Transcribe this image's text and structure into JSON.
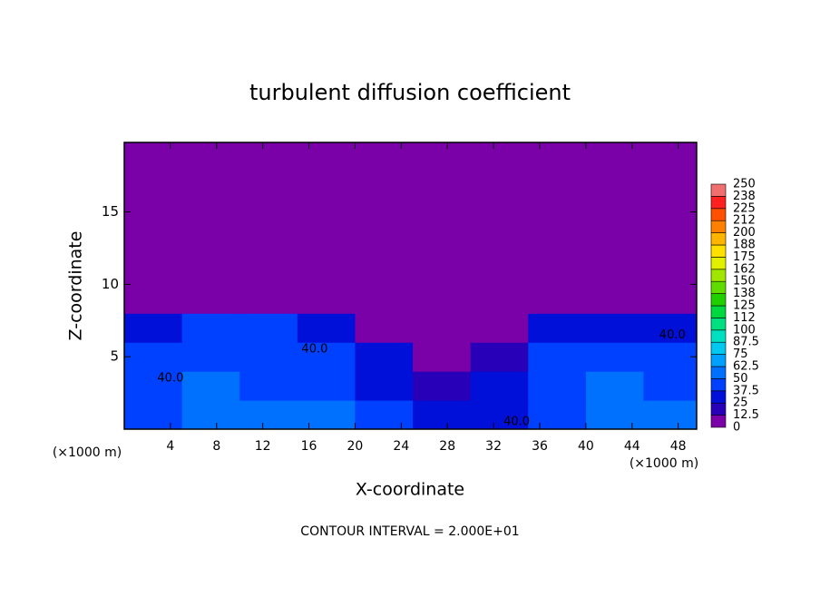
{
  "chart_data": {
    "type": "heatmap",
    "title": "turbulent diffusion coefficient",
    "x_label": "X-coordinate",
    "y_label": "Z-coordinate",
    "x_unit_left": "(×1000 m)",
    "x_unit_right": "(×1000 m)",
    "footer": "CONTOUR INTERVAL = 2.000E+01",
    "xlim": [
      0,
      49.6
    ],
    "ylim": [
      0,
      19.8
    ],
    "xticks": [
      4,
      8,
      12,
      16,
      20,
      24,
      28,
      32,
      36,
      40,
      44,
      48
    ],
    "yticks": [
      5,
      10,
      15
    ],
    "x_edges": [
      0,
      5,
      10,
      15,
      20,
      25,
      30,
      35,
      40,
      45,
      49.6
    ],
    "y_edges": [
      0,
      2,
      4,
      6,
      8,
      19.8
    ],
    "values": [
      [
        45,
        55,
        50,
        50,
        40,
        30,
        35,
        45,
        50,
        55
      ],
      [
        40,
        50,
        45,
        45,
        35,
        20,
        30,
        45,
        50,
        45
      ],
      [
        40,
        45,
        45,
        40,
        30,
        10,
        15,
        40,
        45,
        40
      ],
      [
        35,
        40,
        40,
        30,
        5,
        0,
        0,
        25,
        30,
        30
      ],
      [
        0,
        0,
        0,
        0,
        0,
        0,
        0,
        0,
        0,
        0
      ]
    ],
    "levels": [
      0,
      12.5,
      25,
      37.5,
      50,
      62.5,
      75,
      87.5,
      100,
      {
        "value": 112.5,
        "label": "112"
      },
      125,
      {
        "value": 137.5,
        "label": "138"
      },
      150,
      {
        "value": 162.5,
        "label": "162"
      },
      175,
      {
        "value": 187.5,
        "label": "188"
      },
      200,
      {
        "value": 212.5,
        "label": "212"
      },
      225,
      {
        "value": 237.5,
        "label": "238"
      },
      250
    ],
    "colors": [
      "#7a00a8",
      "#2800b8",
      "#0010d8",
      "#0040ff",
      "#0070ff",
      "#00a0ff",
      "#00c8f0",
      "#00e0c0",
      "#00e080",
      "#00d840",
      "#20d000",
      "#60dc00",
      "#a0e600",
      "#e0f000",
      "#ffe000",
      "#ffb400",
      "#ff8000",
      "#ff5000",
      "#ff2020",
      "#f07070"
    ],
    "contour_labels": [
      {
        "text": "40.0",
        "x": 34,
        "y": 0.5
      },
      {
        "text": "40.0",
        "x": 4,
        "y": 3.5
      },
      {
        "text": "40.0",
        "x": 16.5,
        "y": 5.5
      },
      {
        "text": "40.0",
        "x": 47.5,
        "y": 6.5
      }
    ]
  }
}
